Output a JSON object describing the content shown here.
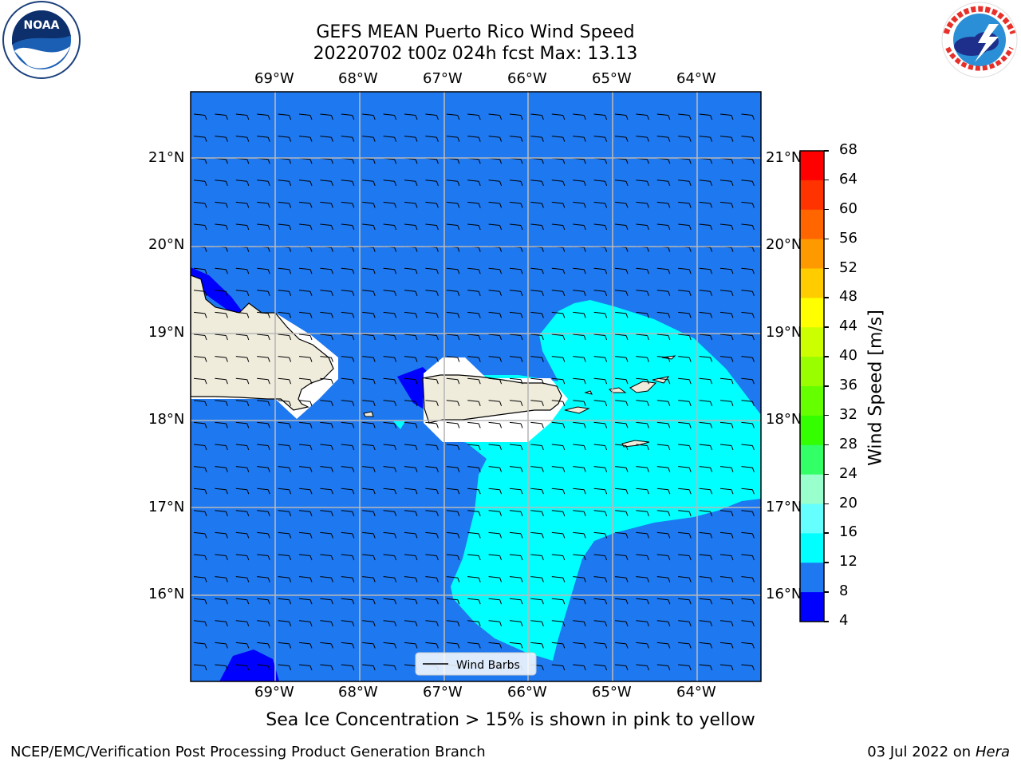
{
  "header": {
    "title_line1": "GEFS MEAN Puerto Rico Wind Speed",
    "title_line2": "20220702 t00z 024h fcst   Max: 13.13"
  },
  "logos": {
    "left": "noara-logo",
    "left_text": "NOAA",
    "left_ring_text": "NATIONAL OCEANIC AND ATMOSPHERIC ADMINISTRATION · U.S. DEPARTMENT OF COMMERCE",
    "right": "nws-logo",
    "right_ring_text": "NATIONAL WEATHER SERVICE"
  },
  "map": {
    "lon_labels": [
      "69°W",
      "68°W",
      "67°W",
      "66°W",
      "65°W",
      "64°W"
    ],
    "lat_labels": [
      "21°N",
      "20°N",
      "19°N",
      "18°N",
      "17°N",
      "16°N"
    ],
    "right_lat_labels": [
      "21°N",
      "20°N",
      "19°N",
      "18°N",
      "17°N",
      "16°N"
    ],
    "legend_label": "Wind Barbs",
    "colors": {
      "ocean_8_12": "#1e78f0",
      "band_12_16": "#00ffff",
      "band_4_8": "#0000ff",
      "land": "#efecdc"
    }
  },
  "colorbar": {
    "label": "Wind Speed [m/s]",
    "ticks": [
      "68",
      "64",
      "60",
      "56",
      "52",
      "48",
      "44",
      "40",
      "36",
      "32",
      "28",
      "24",
      "20",
      "16",
      "12",
      "8",
      "4"
    ],
    "colors": [
      "#ff0000",
      "#ff3300",
      "#ff6600",
      "#ff9900",
      "#ffcc00",
      "#ffff00",
      "#ccff00",
      "#99ff00",
      "#66ff00",
      "#33ff00",
      "#33ff66",
      "#99ffcc",
      "#66ffff",
      "#00ffff",
      "#1e78f0",
      "#0000ff"
    ]
  },
  "notes": {
    "sea_ice": "Sea Ice Concentration > 15% is shown in pink to yellow"
  },
  "footer": {
    "left": "NCEP/EMC/Verification Post Processing Product Generation Branch",
    "right_date": "03 Jul 2022 on ",
    "right_host": "Hera"
  }
}
